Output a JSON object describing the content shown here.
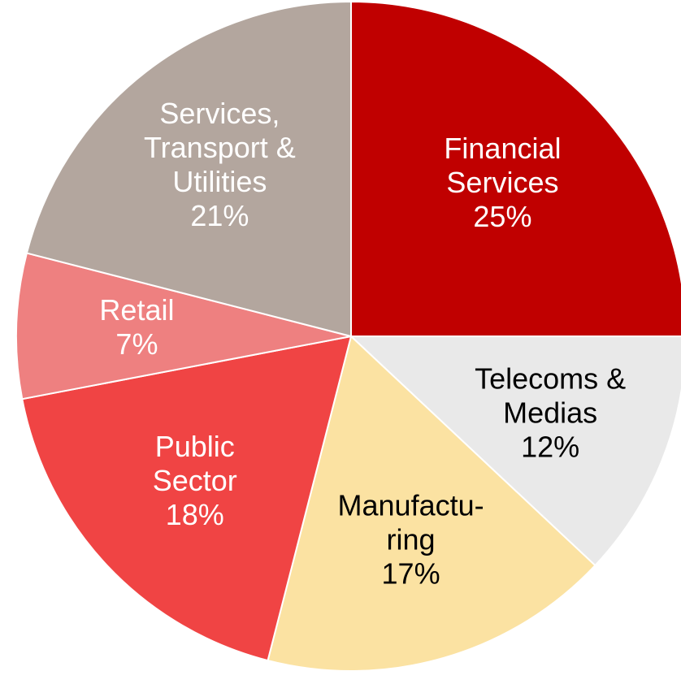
{
  "chart_data": {
    "type": "pie",
    "categories": [
      [
        "Financial",
        "Services"
      ],
      [
        "Telecoms &",
        "Medias"
      ],
      [
        "Manufactu-",
        "ring"
      ],
      [
        "Public",
        "Sector"
      ],
      [
        "Retail"
      ],
      [
        "Services,",
        "Transport &",
        "Utilities"
      ]
    ],
    "values": [
      25,
      12,
      17,
      18,
      7,
      21
    ],
    "value_labels": [
      "25%",
      "12%",
      "17%",
      "18%",
      "7%",
      "21%"
    ],
    "colors": [
      "#c00000",
      "#e9e9e9",
      "#fbe2a2",
      "#f04444",
      "#ee8080",
      "#b3a69e"
    ],
    "label_colors": [
      "#ffffff",
      "#000000",
      "#000000",
      "#ffffff",
      "#ffffff",
      "#ffffff"
    ]
  }
}
